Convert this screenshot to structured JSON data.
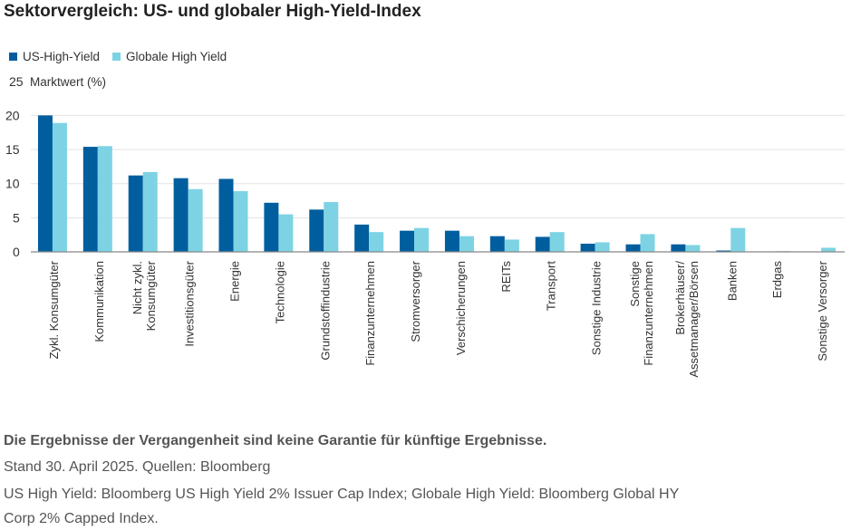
{
  "title": "Sektorvergleich: US- und globaler High-Yield-Index",
  "chart_data": {
    "type": "bar",
    "title": "Sektorvergleich: US- und globaler High-Yield-Index",
    "ylabel": "Marktwert (%)",
    "xlabel": "",
    "ylim": [
      0,
      25
    ],
    "yticks": [
      0,
      5,
      10,
      15,
      20,
      25
    ],
    "legend": "top-left",
    "grid": true,
    "categories": [
      [
        "Zykl. Konsumgüter"
      ],
      [
        "Kommunikation"
      ],
      [
        "Nicht zykl.",
        "Konsumgüter"
      ],
      [
        "Investitionsgüter"
      ],
      [
        "Energie"
      ],
      [
        "Technologie"
      ],
      [
        "Grundstoffindustrie"
      ],
      [
        "Finanzunternehmen"
      ],
      [
        "Stromversorger"
      ],
      [
        "Verschicherungen"
      ],
      [
        "REITs"
      ],
      [
        "Transport"
      ],
      [
        "Sonstige Industrie"
      ],
      [
        "Sonstige",
        "Finanzunternehmen"
      ],
      [
        "Brokerhäuser/",
        "Assetmanager/Börsen"
      ],
      [
        "Banken"
      ],
      [
        "Erdgas"
      ],
      [
        "Sonstige Versorger"
      ]
    ],
    "series": [
      {
        "name": "US-High-Yield",
        "color": "#005e9e",
        "values": [
          20.0,
          15.4,
          11.2,
          10.8,
          10.7,
          7.2,
          6.2,
          4.0,
          3.1,
          3.1,
          2.3,
          2.2,
          1.2,
          1.1,
          1.1,
          0.2,
          0.0,
          0.0
        ]
      },
      {
        "name": "Globale High Yield",
        "color": "#7dd3e3",
        "values": [
          18.9,
          15.5,
          11.7,
          9.2,
          8.9,
          5.5,
          7.3,
          2.9,
          3.5,
          2.3,
          1.8,
          2.9,
          1.4,
          2.6,
          1.0,
          3.5,
          0.1,
          0.6
        ]
      }
    ]
  },
  "footer": {
    "disclaimer": "Die Ergebnisse der Vergangenheit sind keine Garantie für künftige Ergebnisse.",
    "source": "Stand 30. April 2025. Quellen: Bloomberg",
    "note1": "US High Yield: Bloomberg US High Yield 2% Issuer Cap Index; Globale High Yield: Bloomberg Global HY",
    "note2": "Corp 2% Capped Index."
  }
}
